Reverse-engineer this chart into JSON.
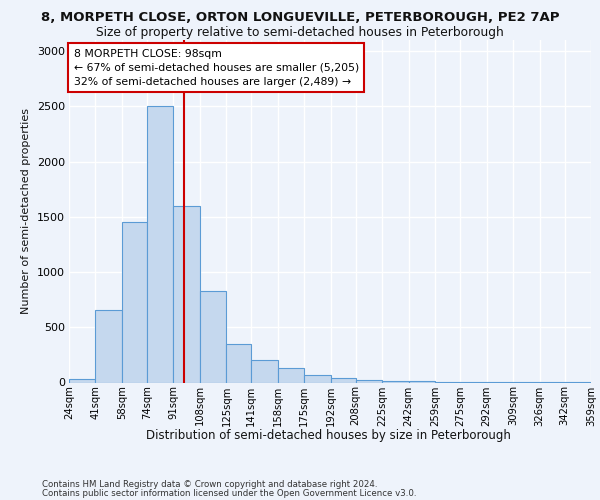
{
  "title1": "8, MORPETH CLOSE, ORTON LONGUEVILLE, PETERBOROUGH, PE2 7AP",
  "title2": "Size of property relative to semi-detached houses in Peterborough",
  "xlabel": "Distribution of semi-detached houses by size in Peterborough",
  "ylabel": "Number of semi-detached properties",
  "bar_lefts": [
    24,
    41,
    58,
    74,
    91,
    108,
    125,
    141,
    158,
    175,
    192,
    208,
    225,
    242,
    259,
    275,
    292,
    309,
    326,
    342
  ],
  "bar_rights": [
    41,
    58,
    74,
    91,
    108,
    125,
    141,
    158,
    175,
    192,
    208,
    225,
    242,
    259,
    275,
    292,
    309,
    326,
    342,
    359
  ],
  "bar_heights": [
    30,
    660,
    1450,
    2500,
    1600,
    830,
    350,
    200,
    135,
    65,
    45,
    25,
    15,
    10,
    5,
    3,
    2,
    2,
    2,
    1
  ],
  "bar_color": "#c5d8ee",
  "bar_edgecolor": "#5b9bd5",
  "property_size": 98,
  "vline_color": "#cc0000",
  "annotation_line1": "8 MORPETH CLOSE: 98sqm",
  "annotation_line2": "← 67% of semi-detached houses are smaller (5,205)",
  "annotation_line3": "32% of semi-detached houses are larger (2,489) →",
  "ylim": [
    0,
    3100
  ],
  "yticks": [
    0,
    500,
    1000,
    1500,
    2000,
    2500,
    3000
  ],
  "xtick_values": [
    24,
    41,
    58,
    74,
    91,
    108,
    125,
    141,
    158,
    175,
    192,
    208,
    225,
    242,
    259,
    275,
    292,
    309,
    326,
    342,
    359
  ],
  "xtick_labels": [
    "24sqm",
    "41sqm",
    "58sqm",
    "74sqm",
    "91sqm",
    "108sqm",
    "125sqm",
    "141sqm",
    "158sqm",
    "175sqm",
    "192sqm",
    "208sqm",
    "225sqm",
    "242sqm",
    "259sqm",
    "275sqm",
    "292sqm",
    "309sqm",
    "326sqm",
    "342sqm",
    "359sqm"
  ],
  "footer1": "Contains HM Land Registry data © Crown copyright and database right 2024.",
  "footer2": "Contains public sector information licensed under the Open Government Licence v3.0.",
  "bg_color": "#eef3fb",
  "grid_color": "#ffffff"
}
